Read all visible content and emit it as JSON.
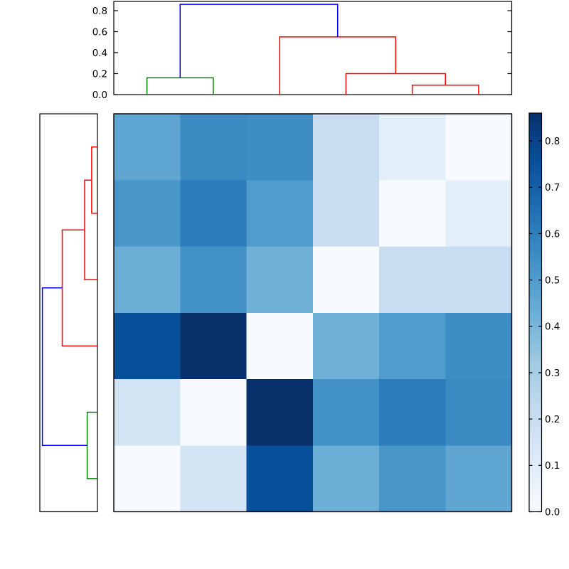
{
  "figure": {
    "background": "#ffffff",
    "description": "clustered heatmap with top and left dendrograms and a vertical colorbar"
  },
  "chart_data": {
    "type": "heatmap",
    "subtype": "clustermap-with-dendrograms",
    "colormap": "Blues",
    "vmin": 0.0,
    "vmax": 0.86,
    "grid": false,
    "matrix": [
      [
        0.46,
        0.56,
        0.55,
        0.2,
        0.09,
        0.0
      ],
      [
        0.52,
        0.61,
        0.5,
        0.2,
        0.0,
        0.09
      ],
      [
        0.43,
        0.54,
        0.42,
        0.0,
        0.2,
        0.2
      ],
      [
        0.76,
        0.86,
        0.0,
        0.42,
        0.5,
        0.55
      ],
      [
        0.16,
        0.0,
        0.86,
        0.54,
        0.61,
        0.56
      ],
      [
        0.0,
        0.16,
        0.76,
        0.43,
        0.52,
        0.46
      ]
    ],
    "n_rows": 6,
    "n_cols": 6,
    "colormap_stops": [
      [
        0.0,
        "#f7fbff"
      ],
      [
        0.125,
        "#deebf7"
      ],
      [
        0.25,
        "#c6dbef"
      ],
      [
        0.375,
        "#9ecae1"
      ],
      [
        0.5,
        "#6baed6"
      ],
      [
        0.625,
        "#4292c6"
      ],
      [
        0.75,
        "#2171b5"
      ],
      [
        0.875,
        "#08519c"
      ],
      [
        1.0,
        "#08306b"
      ]
    ],
    "colorbar": {
      "position": "right",
      "ticks": [
        0.0,
        0.1,
        0.2,
        0.3,
        0.4,
        0.5,
        0.6,
        0.7,
        0.8
      ],
      "tick_labels": [
        "0.0",
        "0.1",
        "0.2",
        "0.3",
        "0.4",
        "0.5",
        "0.6",
        "0.7",
        "0.8"
      ]
    },
    "top_dendrogram": {
      "ylim": [
        0,
        0.888
      ],
      "yticks": [
        0.0,
        0.2,
        0.4,
        0.6,
        0.8
      ],
      "ytick_labels": [
        "0.0",
        "0.2",
        "0.4",
        "0.6",
        "0.8"
      ],
      "links": [
        {
          "id": "N0",
          "a": "L4",
          "b": "L5",
          "h": 0.09,
          "color": "#ff0000"
        },
        {
          "id": "N1",
          "a": "L3",
          "b": "N0",
          "h": 0.2,
          "color": "#ff0000"
        },
        {
          "id": "N2",
          "a": "L2",
          "b": "N1",
          "h": 0.55,
          "color": "#ff0000"
        },
        {
          "id": "N3",
          "a": "L0",
          "b": "L1",
          "h": 0.16,
          "color": "#008000"
        },
        {
          "id": "N4",
          "a": "N3",
          "b": "N2",
          "h": 0.86,
          "color": "#0000ff"
        }
      ]
    },
    "left_dendrogram": {
      "xlim": [
        0,
        0.9
      ],
      "links": [
        {
          "id": "N0",
          "a": "L0",
          "b": "L1",
          "h": 0.09,
          "color": "#ff0000"
        },
        {
          "id": "N1",
          "a": "N0",
          "b": "L2",
          "h": 0.2,
          "color": "#ff0000"
        },
        {
          "id": "N2",
          "a": "N1",
          "b": "L3",
          "h": 0.55,
          "color": "#ff0000"
        },
        {
          "id": "N3",
          "a": "L4",
          "b": "L5",
          "h": 0.16,
          "color": "#008000"
        },
        {
          "id": "N4",
          "a": "N2",
          "b": "N3",
          "h": 0.86,
          "color": "#0000ff"
        }
      ]
    },
    "line_colors": {
      "cluster_green": "#008000",
      "cluster_red": "#ff0000",
      "root_blue": "#0000ff"
    },
    "axes_edge_color": "#000000"
  }
}
